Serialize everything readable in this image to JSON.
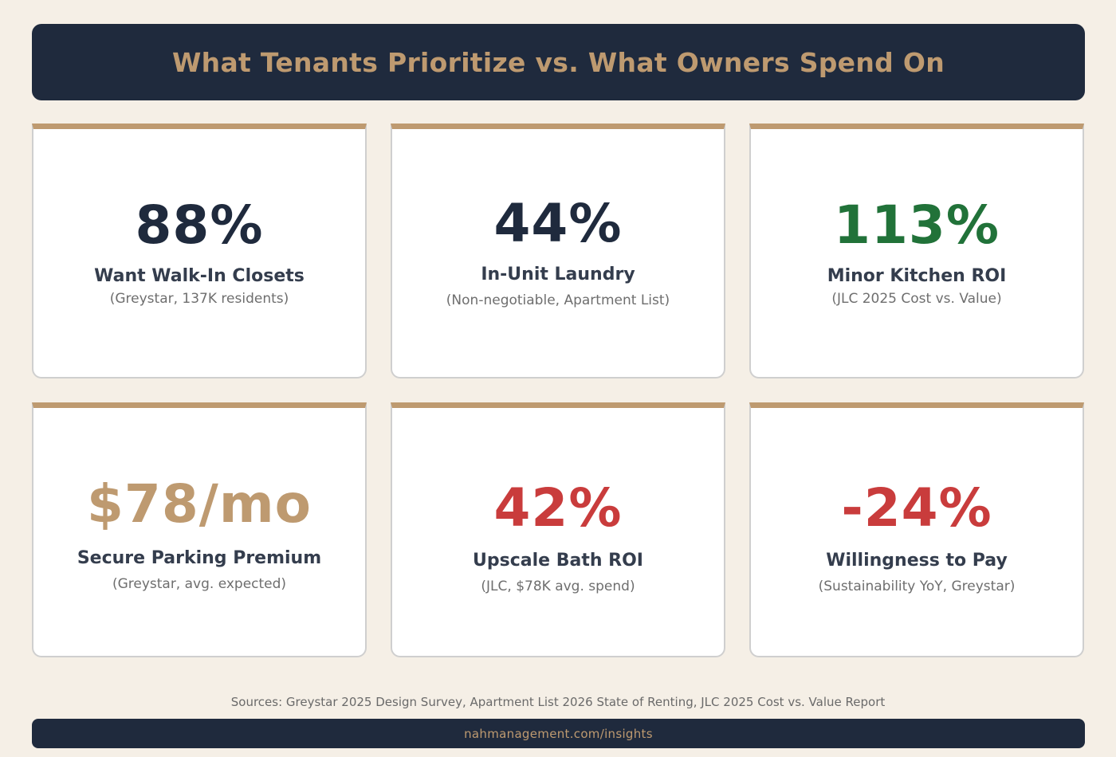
{
  "header": {
    "title": "What Tenants Prioritize vs. What Owners Spend On"
  },
  "colors": {
    "navy": "#1f2a3d",
    "tan": "#be9a70",
    "green": "#217239",
    "red": "#c93c3c",
    "background": "#f5efe6"
  },
  "cards": [
    {
      "value": "88%",
      "label": "Want Walk-In Closets",
      "source": "(Greystar, 137K residents)",
      "value_color": "#1f2a3d"
    },
    {
      "value": "44%",
      "label": "In-Unit Laundry",
      "source": "(Non-negotiable, Apartment List)",
      "value_color": "#1f2a3d"
    },
    {
      "value": "113%",
      "label": "Minor Kitchen ROI",
      "source": "(JLC 2025 Cost vs. Value)",
      "value_color": "#217239"
    },
    {
      "value": "$78/mo",
      "label": "Secure Parking Premium",
      "source": "(Greystar, avg. expected)",
      "value_color": "#be9a70"
    },
    {
      "value": "42%",
      "label": "Upscale Bath ROI",
      "source": "(JLC, $78K avg. spend)",
      "value_color": "#c93c3c"
    },
    {
      "value": "-24%",
      "label": "Willingness to Pay",
      "source": "(Sustainability YoY, Greystar)",
      "value_color": "#c93c3c"
    }
  ],
  "sources": "Sources: Greystar 2025 Design Survey, Apartment List 2026 State of Renting, JLC 2025 Cost vs. Value Report",
  "footer": {
    "url": "nahmanagement.com/insights"
  }
}
